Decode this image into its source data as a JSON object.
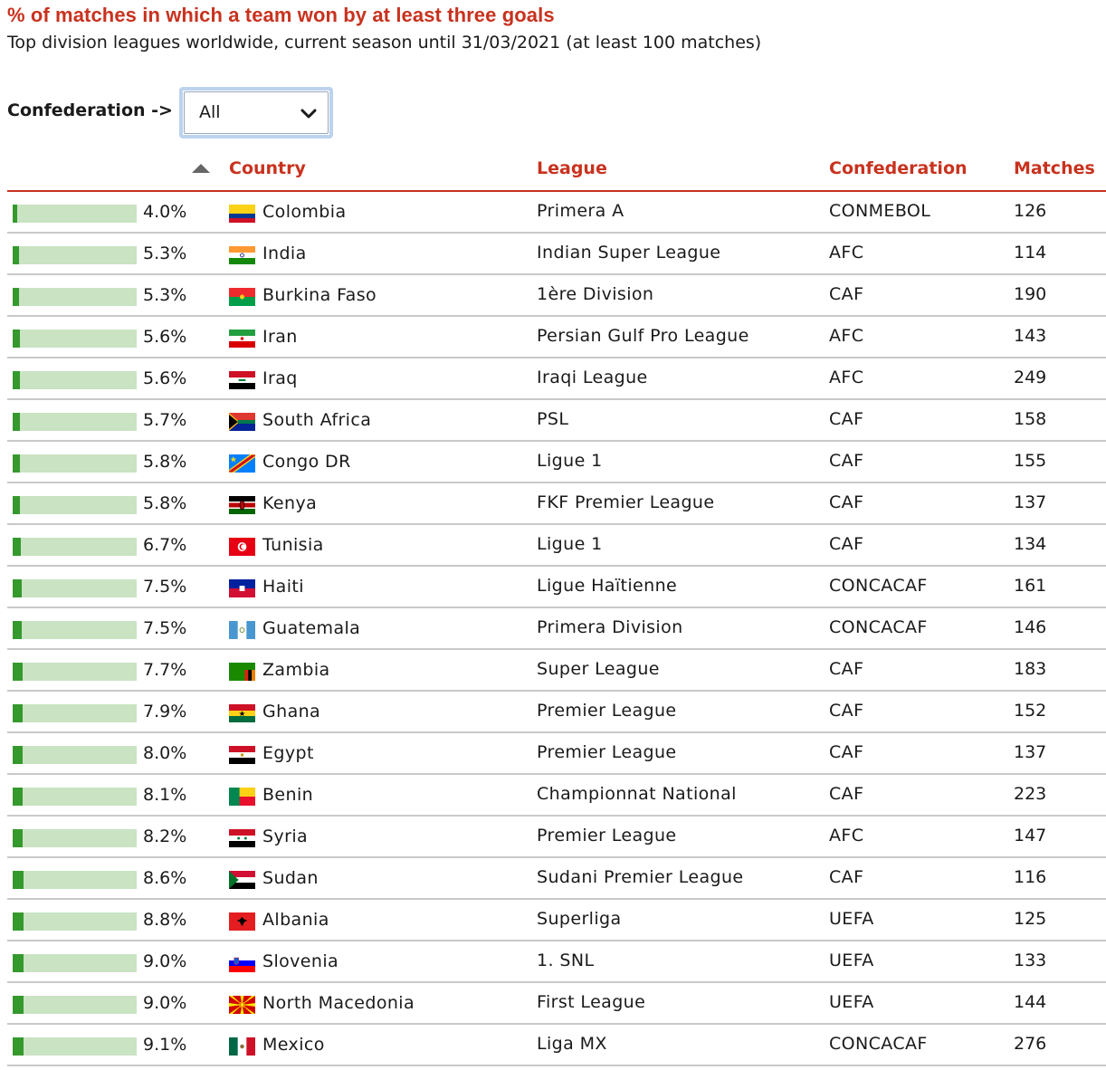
{
  "title": "% of matches in which a team won by at least three goals",
  "subtitle": "Top division leagues worldwide, current season until 31/03/2021 (at least 100 matches)",
  "filter": {
    "label": "Confederation ->",
    "selected": "All"
  },
  "colors": {
    "accent": "#c8321e",
    "bar_fill": "#35992e",
    "bar_track": "#c9e3c3",
    "row_divider": "#c9c9c9"
  },
  "table": {
    "headers": {
      "country": "Country",
      "league": "League",
      "confederation": "Confederation",
      "matches": "Matches"
    },
    "sort": {
      "column": "percentage",
      "direction": "ascending",
      "icon": "sort-up-icon"
    }
  },
  "chart_data": {
    "type": "table",
    "bar_scale_max": 100,
    "rows": [
      {
        "pct": "4.0%",
        "value": 4.0,
        "country": "Colombia",
        "flag": "flag-colombia-icon",
        "league": "Primera A",
        "confederation": "CONMEBOL",
        "matches": "126"
      },
      {
        "pct": "5.3%",
        "value": 5.3,
        "country": "India",
        "flag": "flag-india-icon",
        "league": "Indian Super League",
        "confederation": "AFC",
        "matches": "114"
      },
      {
        "pct": "5.3%",
        "value": 5.3,
        "country": "Burkina Faso",
        "flag": "flag-burkina-faso-icon",
        "league": "1ère Division",
        "confederation": "CAF",
        "matches": "190"
      },
      {
        "pct": "5.6%",
        "value": 5.6,
        "country": "Iran",
        "flag": "flag-iran-icon",
        "league": "Persian Gulf Pro League",
        "confederation": "AFC",
        "matches": "143"
      },
      {
        "pct": "5.6%",
        "value": 5.6,
        "country": "Iraq",
        "flag": "flag-iraq-icon",
        "league": "Iraqi League",
        "confederation": "AFC",
        "matches": "249"
      },
      {
        "pct": "5.7%",
        "value": 5.7,
        "country": "South Africa",
        "flag": "flag-south-africa-icon",
        "league": "PSL",
        "confederation": "CAF",
        "matches": "158"
      },
      {
        "pct": "5.8%",
        "value": 5.8,
        "country": "Congo DR",
        "flag": "flag-congo-dr-icon",
        "league": "Ligue 1",
        "confederation": "CAF",
        "matches": "155"
      },
      {
        "pct": "5.8%",
        "value": 5.8,
        "country": "Kenya",
        "flag": "flag-kenya-icon",
        "league": "FKF Premier League",
        "confederation": "CAF",
        "matches": "137"
      },
      {
        "pct": "6.7%",
        "value": 6.7,
        "country": "Tunisia",
        "flag": "flag-tunisia-icon",
        "league": "Ligue 1",
        "confederation": "CAF",
        "matches": "134"
      },
      {
        "pct": "7.5%",
        "value": 7.5,
        "country": "Haiti",
        "flag": "flag-haiti-icon",
        "league": "Ligue Haïtienne",
        "confederation": "CONCACAF",
        "matches": "161"
      },
      {
        "pct": "7.5%",
        "value": 7.5,
        "country": "Guatemala",
        "flag": "flag-guatemala-icon",
        "league": "Primera Division",
        "confederation": "CONCACAF",
        "matches": "146"
      },
      {
        "pct": "7.7%",
        "value": 7.7,
        "country": "Zambia",
        "flag": "flag-zambia-icon",
        "league": "Super League",
        "confederation": "CAF",
        "matches": "183"
      },
      {
        "pct": "7.9%",
        "value": 7.9,
        "country": "Ghana",
        "flag": "flag-ghana-icon",
        "league": "Premier League",
        "confederation": "CAF",
        "matches": "152"
      },
      {
        "pct": "8.0%",
        "value": 8.0,
        "country": "Egypt",
        "flag": "flag-egypt-icon",
        "league": "Premier League",
        "confederation": "CAF",
        "matches": "137"
      },
      {
        "pct": "8.1%",
        "value": 8.1,
        "country": "Benin",
        "flag": "flag-benin-icon",
        "league": "Championnat National",
        "confederation": "CAF",
        "matches": "223"
      },
      {
        "pct": "8.2%",
        "value": 8.2,
        "country": "Syria",
        "flag": "flag-syria-icon",
        "league": "Premier League",
        "confederation": "AFC",
        "matches": "147"
      },
      {
        "pct": "8.6%",
        "value": 8.6,
        "country": "Sudan",
        "flag": "flag-sudan-icon",
        "league": "Sudani Premier League",
        "confederation": "CAF",
        "matches": "116"
      },
      {
        "pct": "8.8%",
        "value": 8.8,
        "country": "Albania",
        "flag": "flag-albania-icon",
        "league": "Superliga",
        "confederation": "UEFA",
        "matches": "125"
      },
      {
        "pct": "9.0%",
        "value": 9.0,
        "country": "Slovenia",
        "flag": "flag-slovenia-icon",
        "league": "1. SNL",
        "confederation": "UEFA",
        "matches": "133"
      },
      {
        "pct": "9.0%",
        "value": 9.0,
        "country": "North Macedonia",
        "flag": "flag-north-macedonia-icon",
        "league": "First League",
        "confederation": "UEFA",
        "matches": "144"
      },
      {
        "pct": "9.1%",
        "value": 9.1,
        "country": "Mexico",
        "flag": "flag-mexico-icon",
        "league": "Liga MX",
        "confederation": "CONCACAF",
        "matches": "276"
      }
    ]
  }
}
